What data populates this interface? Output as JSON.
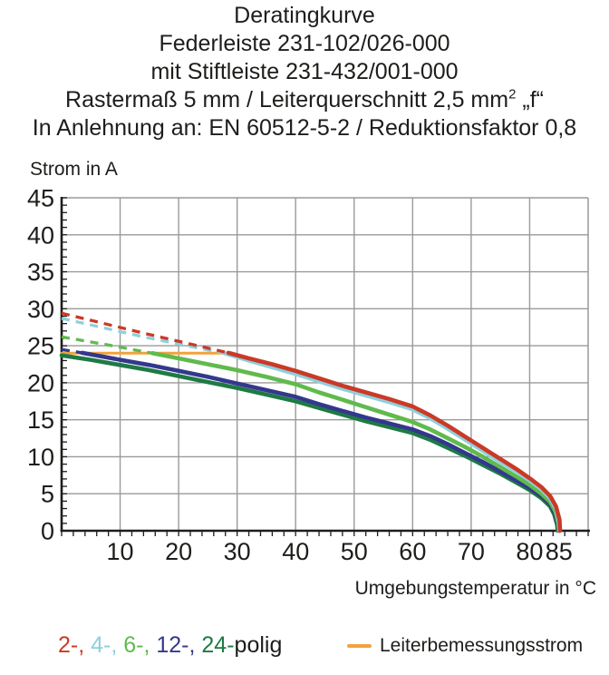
{
  "title": {
    "lines": [
      {
        "pre": "Deratingkurve"
      },
      {
        "pre": "Federleiste 231-102/026-000"
      },
      {
        "pre": "mit Stiftleiste 231-432/001-000"
      },
      {
        "pre": "Rastermaß 5 mm / Leiterquerschnitt 2,5 mm",
        "sup": "2",
        "post": " „f“"
      },
      {
        "pre": "In Anlehnung an: EN 60512-5-2 / Reduktionsfaktor 0,8"
      }
    ]
  },
  "colors": {
    "text": "#1d1d1b",
    "grid": "#9a9a9a",
    "axis": "#1d1d1b",
    "pole2": "#cb3927",
    "pole4": "#8ed0dc",
    "pole6": "#60ba4d",
    "pole12": "#33388d",
    "pole24": "#1e7a44",
    "rated": "#f2a23d"
  },
  "legend": {
    "poles": [
      {
        "text": "2-, ",
        "color": "#cb3927"
      },
      {
        "text": "4-, ",
        "color": "#8ed0dc"
      },
      {
        "text": "6-, ",
        "color": "#60ba4d"
      },
      {
        "text": "12-, ",
        "color": "#33388d"
      },
      {
        "text": "24-",
        "color": "#1e7a44"
      },
      {
        "text": "polig",
        "color": "#1d1d1b"
      }
    ],
    "rated_label": "Leiterbemessungsstrom"
  },
  "chart_data": {
    "type": "line",
    "title": "Deratingkurve",
    "xlabel": "Umgebungstemperatur in °C",
    "ylabel": "Strom in A",
    "xlim": [
      0,
      90
    ],
    "ylim": [
      0,
      45
    ],
    "grid": true,
    "x_ticks_labeled": [
      10,
      20,
      30,
      40,
      50,
      60,
      70,
      80,
      85
    ],
    "y_ticks_labeled": [
      0,
      5,
      10,
      15,
      20,
      25,
      30,
      35,
      40,
      45
    ],
    "x_minor_step": 2,
    "y_minor_step": 1,
    "series": [
      {
        "name": "24-polig",
        "color": "#1e7a44",
        "dashed": [],
        "solid": [
          [
            0,
            23.7
          ],
          [
            5,
            23.1
          ],
          [
            10,
            22.4
          ],
          [
            15,
            21.7
          ],
          [
            20,
            20.9
          ],
          [
            25,
            20.1
          ],
          [
            30,
            19.3
          ],
          [
            35,
            18.4
          ],
          [
            40,
            17.5
          ],
          [
            44,
            16.6
          ],
          [
            48,
            15.7
          ],
          [
            52,
            14.8
          ],
          [
            56,
            14.0
          ],
          [
            60,
            13.2
          ],
          [
            63,
            12.3
          ],
          [
            66,
            11.2
          ],
          [
            69,
            10.1
          ],
          [
            72,
            8.9
          ],
          [
            75,
            7.7
          ],
          [
            78,
            6.4
          ],
          [
            80,
            5.5
          ],
          [
            82,
            4.4
          ],
          [
            83.5,
            3.3
          ],
          [
            84.2,
            2.2
          ],
          [
            84.7,
            0.8
          ],
          [
            84.8,
            0
          ]
        ]
      },
      {
        "name": "12-polig",
        "color": "#33388d",
        "dashed": [
          [
            0,
            24.5
          ],
          [
            3.5,
            24.05
          ]
        ],
        "solid": [
          [
            3.5,
            24.05
          ],
          [
            10,
            23.1
          ],
          [
            15,
            22.4
          ],
          [
            20,
            21.6
          ],
          [
            25,
            20.8
          ],
          [
            30,
            19.9
          ],
          [
            35,
            19.0
          ],
          [
            40,
            18.1
          ],
          [
            44,
            17.1
          ],
          [
            48,
            16.2
          ],
          [
            52,
            15.3
          ],
          [
            56,
            14.5
          ],
          [
            60,
            13.7
          ],
          [
            63,
            12.8
          ],
          [
            66,
            11.7
          ],
          [
            69,
            10.5
          ],
          [
            72,
            9.3
          ],
          [
            75,
            8.0
          ],
          [
            78,
            6.7
          ],
          [
            80,
            5.8
          ],
          [
            82,
            4.7
          ],
          [
            83.5,
            3.6
          ],
          [
            84.3,
            2.4
          ],
          [
            84.8,
            0.9
          ],
          [
            84.9,
            0
          ]
        ]
      },
      {
        "name": "6-polig",
        "color": "#60ba4d",
        "dashed": [
          [
            0,
            26.2
          ],
          [
            8,
            25.1
          ],
          [
            15.5,
            24.0
          ]
        ],
        "solid": [
          [
            15.5,
            24.0
          ],
          [
            20,
            23.3
          ],
          [
            25,
            22.5
          ],
          [
            30,
            21.7
          ],
          [
            35,
            20.8
          ],
          [
            40,
            19.8
          ],
          [
            44,
            18.7
          ],
          [
            48,
            17.7
          ],
          [
            52,
            16.7
          ],
          [
            56,
            15.7
          ],
          [
            60,
            14.7
          ],
          [
            63,
            13.7
          ],
          [
            66,
            12.5
          ],
          [
            69,
            11.3
          ],
          [
            72,
            10.0
          ],
          [
            75,
            8.6
          ],
          [
            78,
            7.2
          ],
          [
            80,
            6.2
          ],
          [
            82,
            5.0
          ],
          [
            83.5,
            3.9
          ],
          [
            84.4,
            2.6
          ],
          [
            84.9,
            1.0
          ],
          [
            85,
            0
          ]
        ]
      },
      {
        "name": "4-polig",
        "color": "#8ed0dc",
        "dashed": [
          [
            0,
            28.7
          ],
          [
            14,
            26.2
          ],
          [
            28,
            23.95
          ]
        ],
        "solid": [
          [
            28,
            23.95
          ],
          [
            32,
            23.0
          ],
          [
            36,
            22.1
          ],
          [
            40,
            21.2
          ],
          [
            44,
            20.2
          ],
          [
            48,
            19.2
          ],
          [
            52,
            18.3
          ],
          [
            56,
            17.4
          ],
          [
            60,
            16.4
          ],
          [
            63,
            15.2
          ],
          [
            66,
            13.8
          ],
          [
            69,
            12.3
          ],
          [
            72,
            10.8
          ],
          [
            75,
            9.3
          ],
          [
            78,
            7.9
          ],
          [
            80,
            6.8
          ],
          [
            82,
            5.6
          ],
          [
            83.5,
            4.4
          ],
          [
            84.5,
            3.0
          ],
          [
            85,
            1.3
          ],
          [
            85.1,
            0
          ]
        ]
      },
      {
        "name": "2-polig",
        "color": "#cb3927",
        "dashed": [
          [
            0,
            29.4
          ],
          [
            14,
            26.7
          ],
          [
            28.5,
            24.05
          ]
        ],
        "solid": [
          [
            28.5,
            24.05
          ],
          [
            32,
            23.3
          ],
          [
            36,
            22.5
          ],
          [
            40,
            21.6
          ],
          [
            44,
            20.6
          ],
          [
            48,
            19.6
          ],
          [
            52,
            18.7
          ],
          [
            56,
            17.8
          ],
          [
            60,
            16.8
          ],
          [
            63,
            15.6
          ],
          [
            66,
            14.2
          ],
          [
            69,
            12.7
          ],
          [
            72,
            11.2
          ],
          [
            75,
            9.7
          ],
          [
            78,
            8.2
          ],
          [
            80,
            7.1
          ],
          [
            82,
            5.9
          ],
          [
            83.5,
            4.7
          ],
          [
            84.5,
            3.3
          ],
          [
            85.1,
            1.5
          ],
          [
            85.2,
            0
          ]
        ]
      }
    ],
    "rated_current_line": {
      "name": "Leiterbemessungsstrom",
      "color": "#f2a23d",
      "y": 24,
      "x_range": [
        0,
        28.3
      ]
    }
  }
}
